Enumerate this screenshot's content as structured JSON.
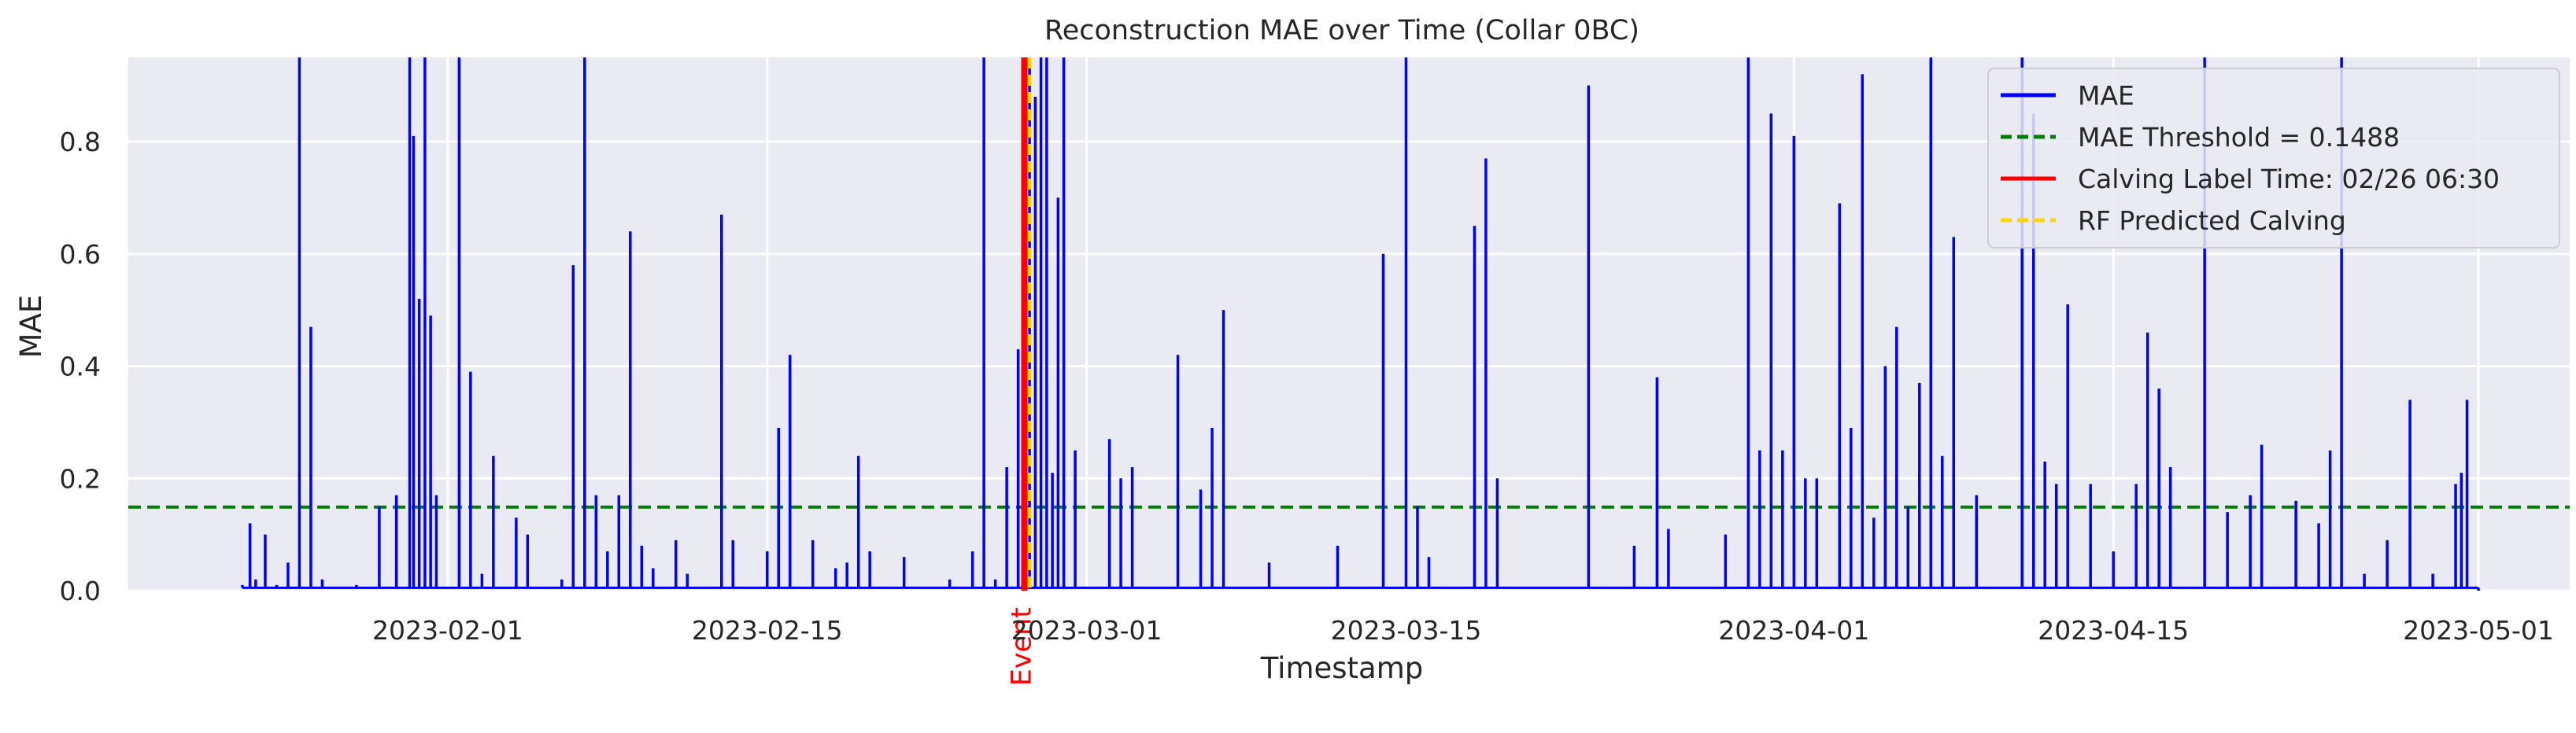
{
  "chart_data": {
    "type": "line",
    "title": "Reconstruction MAE over Time (Collar 0BC)",
    "xlabel": "Timestamp",
    "ylabel": "MAE",
    "xlim": [
      "2023-01-18",
      "2023-05-05"
    ],
    "ylim": [
      0,
      0.95
    ],
    "grid": true,
    "legend_position": "top-right",
    "x_ticks": [
      "2023-02-01",
      "2023-02-15",
      "2023-03-01",
      "2023-03-15",
      "2023-04-01",
      "2023-04-15",
      "2023-05-01"
    ],
    "y_ticks": [
      0.0,
      0.2,
      0.4,
      0.6,
      0.8
    ],
    "y_tick_labels": [
      "0.0",
      "0.2",
      "0.4",
      "0.6",
      "0.8"
    ],
    "series": [
      {
        "name": "MAE",
        "color": "#0000ff",
        "points": [
          [
            "2023-01-23",
            0.01
          ],
          [
            "2023-01-23 08:00",
            0.12
          ],
          [
            "2023-01-23 14:00",
            0.02
          ],
          [
            "2023-01-24",
            0.1
          ],
          [
            "2023-01-24 12:00",
            0.01
          ],
          [
            "2023-01-25",
            0.05
          ],
          [
            "2023-01-25 12:00",
            0.95
          ],
          [
            "2023-01-26",
            0.47
          ],
          [
            "2023-01-26 12:00",
            0.02
          ],
          [
            "2023-01-28",
            0.01
          ],
          [
            "2023-01-29",
            0.15
          ],
          [
            "2023-01-29 18:00",
            0.17
          ],
          [
            "2023-01-30 08:00",
            0.95
          ],
          [
            "2023-01-30 12:00",
            0.81
          ],
          [
            "2023-01-30 18:00",
            0.52
          ],
          [
            "2023-01-31",
            0.95
          ],
          [
            "2023-01-31 06:00",
            0.49
          ],
          [
            "2023-01-31 12:00",
            0.17
          ],
          [
            "2023-02-01 12:00",
            0.95
          ],
          [
            "2023-02-02",
            0.39
          ],
          [
            "2023-02-02 12:00",
            0.03
          ],
          [
            "2023-02-03",
            0.24
          ],
          [
            "2023-02-04",
            0.13
          ],
          [
            "2023-02-04 12:00",
            0.1
          ],
          [
            "2023-02-06",
            0.02
          ],
          [
            "2023-02-06 12:00",
            0.58
          ],
          [
            "2023-02-07",
            0.95
          ],
          [
            "2023-02-07 12:00",
            0.17
          ],
          [
            "2023-02-08",
            0.07
          ],
          [
            "2023-02-08 12:00",
            0.17
          ],
          [
            "2023-02-09",
            0.64
          ],
          [
            "2023-02-09 12:00",
            0.08
          ],
          [
            "2023-02-10",
            0.04
          ],
          [
            "2023-02-11",
            0.09
          ],
          [
            "2023-02-11 12:00",
            0.03
          ],
          [
            "2023-02-13",
            0.67
          ],
          [
            "2023-02-13 12:00",
            0.09
          ],
          [
            "2023-02-15",
            0.07
          ],
          [
            "2023-02-15 12:00",
            0.29
          ],
          [
            "2023-02-16",
            0.42
          ],
          [
            "2023-02-17",
            0.09
          ],
          [
            "2023-02-18",
            0.04
          ],
          [
            "2023-02-18 12:00",
            0.05
          ],
          [
            "2023-02-19",
            0.24
          ],
          [
            "2023-02-19 12:00",
            0.07
          ],
          [
            "2023-02-21",
            0.06
          ],
          [
            "2023-02-23",
            0.02
          ],
          [
            "2023-02-24",
            0.07
          ],
          [
            "2023-02-24 12:00",
            0.95
          ],
          [
            "2023-02-25",
            0.02
          ],
          [
            "2023-02-25 12:00",
            0.22
          ],
          [
            "2023-02-26",
            0.43
          ],
          [
            "2023-02-26 06:00",
            0.24
          ],
          [
            "2023-02-26 12:00",
            0.95
          ],
          [
            "2023-02-26 18:00",
            0.88
          ],
          [
            "2023-02-27",
            0.95
          ],
          [
            "2023-02-27 06:00",
            0.95
          ],
          [
            "2023-02-27 12:00",
            0.21
          ],
          [
            "2023-02-27 18:00",
            0.7
          ],
          [
            "2023-02-28",
            0.95
          ],
          [
            "2023-02-28 12:00",
            0.25
          ],
          [
            "2023-03-02",
            0.27
          ],
          [
            "2023-03-02 12:00",
            0.2
          ],
          [
            "2023-03-03",
            0.22
          ],
          [
            "2023-03-05",
            0.42
          ],
          [
            "2023-03-06",
            0.18
          ],
          [
            "2023-03-06 12:00",
            0.29
          ],
          [
            "2023-03-07",
            0.5
          ],
          [
            "2023-03-09",
            0.05
          ],
          [
            "2023-03-12",
            0.08
          ],
          [
            "2023-03-14",
            0.6
          ],
          [
            "2023-03-15",
            0.95
          ],
          [
            "2023-03-15 12:00",
            0.15
          ],
          [
            "2023-03-16",
            0.06
          ],
          [
            "2023-03-18",
            0.65
          ],
          [
            "2023-03-18 12:00",
            0.77
          ],
          [
            "2023-03-19",
            0.2
          ],
          [
            "2023-03-23",
            0.9
          ],
          [
            "2023-03-25",
            0.08
          ],
          [
            "2023-03-26",
            0.38
          ],
          [
            "2023-03-26 12:00",
            0.11
          ],
          [
            "2023-03-29",
            0.1
          ],
          [
            "2023-03-30",
            0.95
          ],
          [
            "2023-03-30 12:00",
            0.25
          ],
          [
            "2023-03-31",
            0.85
          ],
          [
            "2023-03-31 12:00",
            0.25
          ],
          [
            "2023-04-01",
            0.81
          ],
          [
            "2023-04-01 12:00",
            0.2
          ],
          [
            "2023-04-02",
            0.2
          ],
          [
            "2023-04-03",
            0.69
          ],
          [
            "2023-04-03 12:00",
            0.29
          ],
          [
            "2023-04-04",
            0.92
          ],
          [
            "2023-04-04 12:00",
            0.13
          ],
          [
            "2023-04-05",
            0.4
          ],
          [
            "2023-04-05 12:00",
            0.47
          ],
          [
            "2023-04-06",
            0.15
          ],
          [
            "2023-04-06 12:00",
            0.37
          ],
          [
            "2023-04-07",
            0.95
          ],
          [
            "2023-04-07 12:00",
            0.24
          ],
          [
            "2023-04-08",
            0.63
          ],
          [
            "2023-04-09",
            0.17
          ],
          [
            "2023-04-11",
            0.95
          ],
          [
            "2023-04-11 12:00",
            0.85
          ],
          [
            "2023-04-12",
            0.23
          ],
          [
            "2023-04-12 12:00",
            0.19
          ],
          [
            "2023-04-13",
            0.51
          ],
          [
            "2023-04-14",
            0.19
          ],
          [
            "2023-04-15",
            0.07
          ],
          [
            "2023-04-16",
            0.19
          ],
          [
            "2023-04-16 12:00",
            0.46
          ],
          [
            "2023-04-17",
            0.36
          ],
          [
            "2023-04-17 12:00",
            0.22
          ],
          [
            "2023-04-19",
            0.95
          ],
          [
            "2023-04-20",
            0.14
          ],
          [
            "2023-04-21",
            0.17
          ],
          [
            "2023-04-21 12:00",
            0.26
          ],
          [
            "2023-04-23",
            0.16
          ],
          [
            "2023-04-24",
            0.12
          ],
          [
            "2023-04-24 12:00",
            0.25
          ],
          [
            "2023-04-25",
            0.95
          ],
          [
            "2023-04-26",
            0.03
          ],
          [
            "2023-04-27",
            0.09
          ],
          [
            "2023-04-28",
            0.34
          ],
          [
            "2023-04-29",
            0.03
          ],
          [
            "2023-04-30",
            0.19
          ],
          [
            "2023-04-30 06:00",
            0.21
          ],
          [
            "2023-04-30 12:00",
            0.34
          ],
          [
            "2023-05-01",
            0.0
          ]
        ]
      },
      {
        "name": "MAE Threshold = 0.1488",
        "color": "#008000",
        "value": 0.1488,
        "style": "dashed"
      },
      {
        "name": "Calving Label Time: 02/26 06:30",
        "color": "#ff0000",
        "x": "2023-02-26 06:30",
        "style": "solid"
      },
      {
        "name": "RF Predicted Calving",
        "color": "#ffd700",
        "x": "2023-02-26 12:00",
        "style": "dashed"
      }
    ],
    "annotations": [
      {
        "text": "Event",
        "x": "2023-02-26 06:30",
        "color": "#ff0000"
      }
    ]
  }
}
